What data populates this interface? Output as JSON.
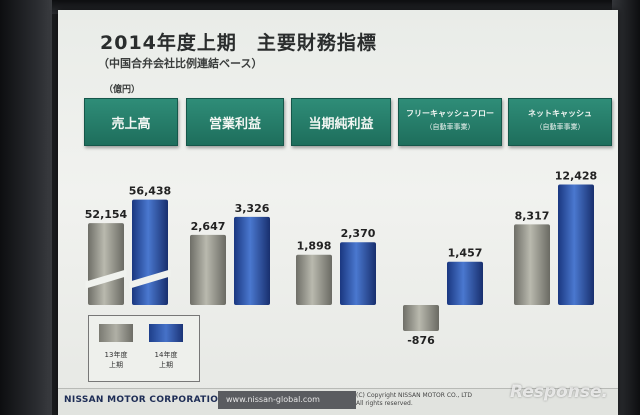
{
  "slide": {
    "title": "2014年度上期　主要財務指標",
    "subtitle": "（中国合弁会社比例連結ベース）",
    "unit": "（億円）"
  },
  "headers": [
    {
      "label": "売上高",
      "sub": ""
    },
    {
      "label": "営業利益",
      "sub": ""
    },
    {
      "label": "当期純利益",
      "sub": ""
    },
    {
      "label": "フリーキャッシュフロー",
      "sub": "（自動車事業）"
    },
    {
      "label": "ネットキャッシュ",
      "sub": "（自動車事業）"
    }
  ],
  "legend": {
    "prev": "13年度\n上期",
    "curr": "14年度\n上期"
  },
  "footer": {
    "corp": "NISSAN MOTOR CORPORATION",
    "url": "www.nissan-global.com",
    "copyright": "(C) Copyright NISSAN MOTOR CO., LTD",
    "rights": "All rights reserved."
  },
  "watermark": "Response.",
  "colors": {
    "header_green": "#2a7f6b",
    "prev_bar": "#9c9c92",
    "curr_bar": "#2f56b0"
  },
  "chart_data": {
    "type": "bar",
    "categories": [
      "売上高",
      "営業利益",
      "当期純利益",
      "フリーキャッシュフロー（自動車事業）",
      "ネットキャッシュ（自動車事業）"
    ],
    "series": [
      {
        "name": "13年度上期",
        "values": [
          52154,
          2647,
          1898,
          -876,
          8317
        ],
        "labels": [
          "52,154",
          "2,647",
          "1,898",
          "-876",
          "8,317"
        ]
      },
      {
        "name": "14年度上期",
        "values": [
          56438,
          3326,
          2370,
          1457,
          12428
        ],
        "labels": [
          "56,438",
          "3,326",
          "2,370",
          "1,457",
          "12,428"
        ]
      }
    ],
    "axis_break": true,
    "grid": false,
    "legend": "bottom-left"
  }
}
